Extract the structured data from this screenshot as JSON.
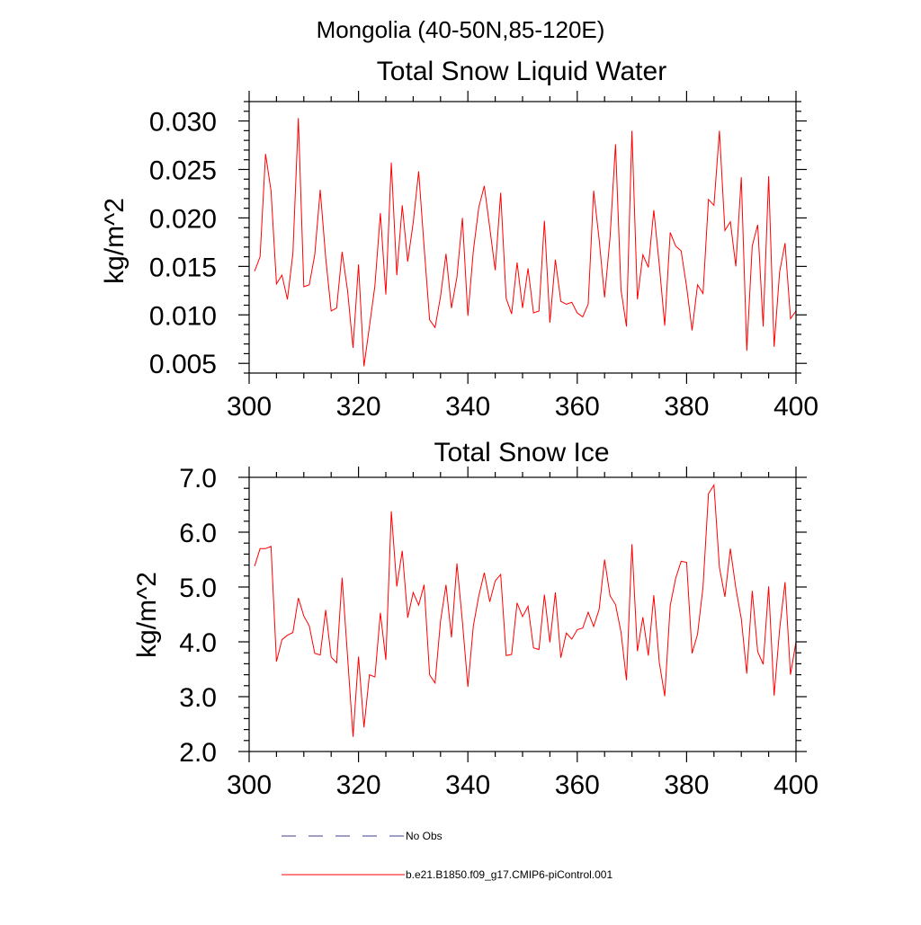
{
  "page_title": "Mongolia (40-50N,85-120E)",
  "colors": {
    "series": "#ff0000",
    "obs": "#3d3d8f",
    "axis": "#000000",
    "background": "#ffffff"
  },
  "chart_data": [
    {
      "type": "line",
      "title": "Total Snow Liquid Water",
      "xlabel": "",
      "ylabel": "kg/m^2",
      "xlim": [
        300,
        400
      ],
      "ylim": [
        0.004,
        0.032
      ],
      "xticks": [
        300,
        320,
        340,
        360,
        380,
        400
      ],
      "xtick_labels": [
        "300",
        "320",
        "340",
        "360",
        "380",
        "400"
      ],
      "yticks": [
        0.005,
        0.01,
        0.015,
        0.02,
        0.025,
        0.03
      ],
      "ytick_labels": [
        "0.005",
        "0.010",
        "0.015",
        "0.020",
        "0.025",
        "0.030"
      ],
      "grid": false,
      "x": [
        301,
        302,
        303,
        304,
        305,
        306,
        307,
        308,
        309,
        310,
        311,
        312,
        313,
        314,
        315,
        316,
        317,
        318,
        319,
        320,
        321,
        322,
        323,
        324,
        325,
        326,
        327,
        328,
        329,
        330,
        331,
        332,
        333,
        334,
        335,
        336,
        337,
        338,
        339,
        340,
        341,
        342,
        343,
        344,
        345,
        346,
        347,
        348,
        349,
        350,
        351,
        352,
        353,
        354,
        355,
        356,
        357,
        358,
        359,
        360,
        361,
        362,
        363,
        364,
        365,
        366,
        367,
        368,
        369,
        370,
        371,
        372,
        373,
        374,
        375,
        376,
        377,
        378,
        379,
        380,
        381,
        382,
        383,
        384,
        385,
        386,
        387,
        388,
        389,
        390,
        391,
        392,
        393,
        394,
        395,
        396,
        397,
        398,
        399,
        400
      ],
      "series": [
        {
          "name": "b.e21.B1850.f09_g17.CMIP6-piControl.001",
          "values": [
            0.0145,
            0.016,
            0.0266,
            0.0228,
            0.0132,
            0.0141,
            0.0116,
            0.0163,
            0.0303,
            0.0129,
            0.0131,
            0.0162,
            0.0229,
            0.0159,
            0.0104,
            0.0107,
            0.0165,
            0.0125,
            0.0066,
            0.0152,
            0.0047,
            0.0088,
            0.013,
            0.0205,
            0.0121,
            0.0257,
            0.0141,
            0.0213,
            0.0155,
            0.0195,
            0.0248,
            0.017,
            0.0095,
            0.0087,
            0.0119,
            0.0163,
            0.0107,
            0.0139,
            0.02,
            0.0099,
            0.0166,
            0.0211,
            0.0233,
            0.019,
            0.0146,
            0.0226,
            0.0117,
            0.0101,
            0.0154,
            0.0107,
            0.0148,
            0.0102,
            0.0104,
            0.0197,
            0.0092,
            0.0157,
            0.0114,
            0.0111,
            0.0113,
            0.0102,
            0.0098,
            0.0111,
            0.0228,
            0.0178,
            0.0118,
            0.018,
            0.0276,
            0.0126,
            0.0088,
            0.029,
            0.0116,
            0.0162,
            0.0149,
            0.0208,
            0.0152,
            0.0089,
            0.0185,
            0.0171,
            0.0166,
            0.0129,
            0.0084,
            0.0131,
            0.0122,
            0.0219,
            0.0213,
            0.029,
            0.0187,
            0.0196,
            0.015,
            0.0242,
            0.0063,
            0.0171,
            0.0193,
            0.0088,
            0.0243,
            0.0067,
            0.0144,
            0.0174,
            0.0096,
            0.0104
          ]
        }
      ]
    },
    {
      "type": "line",
      "title": "Total Snow Ice",
      "xlabel": "",
      "ylabel": "kg/m^2",
      "xlim": [
        300,
        400
      ],
      "ylim": [
        2.0,
        7.0
      ],
      "xticks": [
        300,
        320,
        340,
        360,
        380,
        400
      ],
      "xtick_labels": [
        "300",
        "320",
        "340",
        "360",
        "380",
        "400"
      ],
      "yticks": [
        2.0,
        3.0,
        4.0,
        5.0,
        6.0,
        7.0
      ],
      "ytick_labels": [
        "2.0",
        "3.0",
        "4.0",
        "5.0",
        "6.0",
        "7.0"
      ],
      "grid": false,
      "x": [
        301,
        302,
        303,
        304,
        305,
        306,
        307,
        308,
        309,
        310,
        311,
        312,
        313,
        314,
        315,
        316,
        317,
        318,
        319,
        320,
        321,
        322,
        323,
        324,
        325,
        326,
        327,
        328,
        329,
        330,
        331,
        332,
        333,
        334,
        335,
        336,
        337,
        338,
        339,
        340,
        341,
        342,
        343,
        344,
        345,
        346,
        347,
        348,
        349,
        350,
        351,
        352,
        353,
        354,
        355,
        356,
        357,
        358,
        359,
        360,
        361,
        362,
        363,
        364,
        365,
        366,
        367,
        368,
        369,
        370,
        371,
        372,
        373,
        374,
        375,
        376,
        377,
        378,
        379,
        380,
        381,
        382,
        383,
        384,
        385,
        386,
        387,
        388,
        389,
        390,
        391,
        392,
        393,
        394,
        395,
        396,
        397,
        398,
        399,
        400
      ],
      "series": [
        {
          "name": "b.e21.B1850.f09_g17.CMIP6-piControl.001",
          "values": [
            5.38,
            5.7,
            5.7,
            5.74,
            3.64,
            4.04,
            4.12,
            4.17,
            4.8,
            4.47,
            4.29,
            3.79,
            3.76,
            4.58,
            3.72,
            3.62,
            5.17,
            3.73,
            2.27,
            3.73,
            2.44,
            3.4,
            3.36,
            4.53,
            3.67,
            6.38,
            5.01,
            5.66,
            4.44,
            4.9,
            4.67,
            5.04,
            3.4,
            3.25,
            4.38,
            5.04,
            4.08,
            5.43,
            4.37,
            3.18,
            4.29,
            4.84,
            5.26,
            4.73,
            5.11,
            5.23,
            3.75,
            3.77,
            4.71,
            4.46,
            4.65,
            3.89,
            3.86,
            4.86,
            3.99,
            4.9,
            3.71,
            4.16,
            4.05,
            4.22,
            4.25,
            4.54,
            4.28,
            4.59,
            5.5,
            4.84,
            4.68,
            4.18,
            3.3,
            5.78,
            3.83,
            4.45,
            3.75,
            4.85,
            3.63,
            3.01,
            4.66,
            5.16,
            5.47,
            5.45,
            3.79,
            4.14,
            5.0,
            6.7,
            6.86,
            5.36,
            4.82,
            5.7,
            4.98,
            4.42,
            3.42,
            4.93,
            3.82,
            3.59,
            5.01,
            3.02,
            4.22,
            5.09,
            3.4,
            4.0
          ]
        }
      ]
    }
  ],
  "legend": {
    "position": "bottom",
    "items": [
      {
        "label": "No Obs",
        "style": "dashed"
      },
      {
        "label": "b.e21.B1850.f09_g17.CMIP6-piControl.001",
        "style": "solid"
      }
    ]
  }
}
